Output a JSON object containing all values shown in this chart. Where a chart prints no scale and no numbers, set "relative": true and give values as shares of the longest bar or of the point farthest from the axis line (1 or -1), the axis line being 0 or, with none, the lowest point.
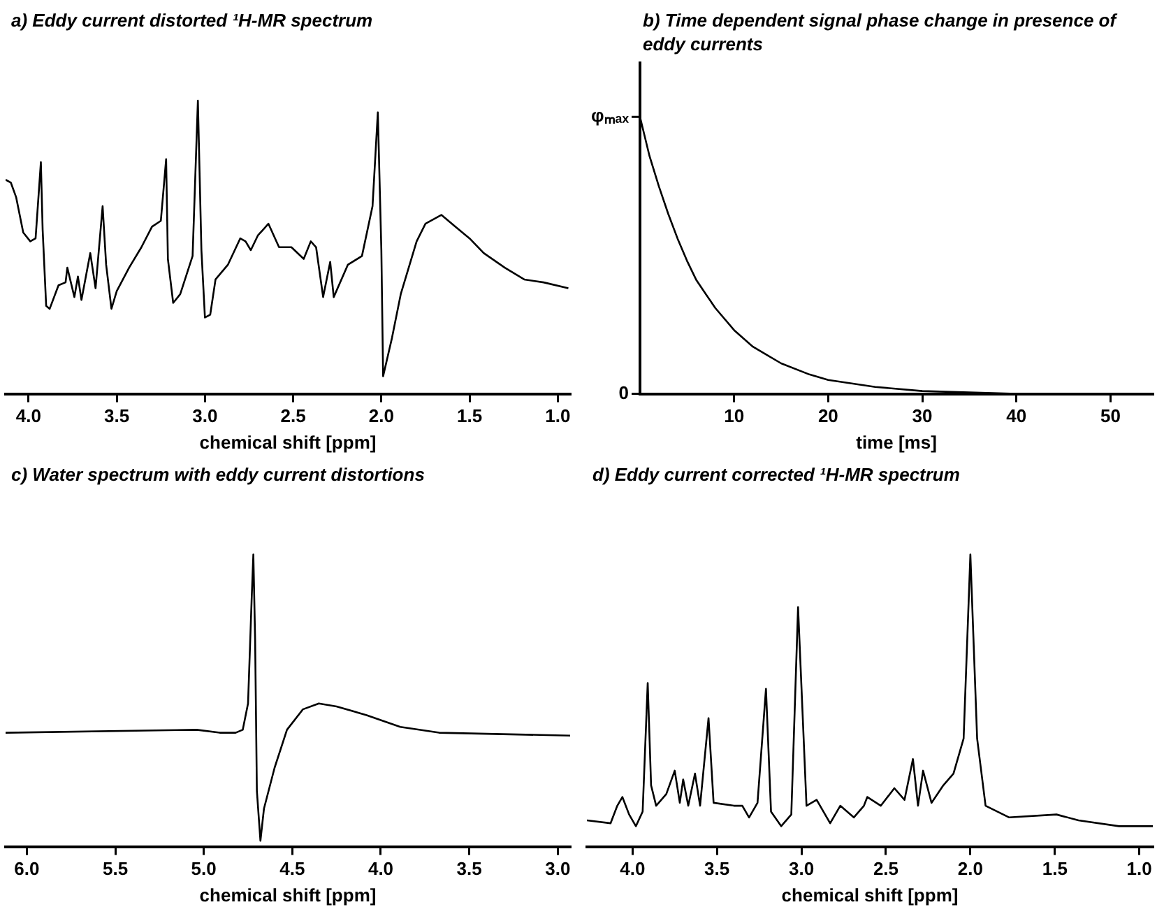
{
  "chart_data": [
    {
      "type": "line",
      "title": "a) Eddy current distorted ¹H-MR spectrum",
      "xlabel": "chemical shift [ppm]",
      "relative": true,
      "tick_labels": "x",
      "marker": "none",
      "color": "#000000",
      "xlim": [
        4.13,
        0.93
      ],
      "xticks": [
        {
          "value": 4,
          "label": "4.0"
        },
        3.5,
        {
          "value": 3,
          "label": "3.0"
        },
        2.5,
        {
          "value": 2,
          "label": "2.0"
        },
        1.5,
        {
          "value": 1,
          "label": "1.0"
        }
      ],
      "x": [
        4.13,
        4.1,
        4.07,
        4.03,
        3.99,
        3.96,
        3.93,
        3.92,
        3.9,
        3.88,
        3.83,
        3.79,
        3.78,
        3.74,
        3.72,
        3.7,
        3.65,
        3.62,
        3.58,
        3.56,
        3.53,
        3.5,
        3.43,
        3.36,
        3.3,
        3.25,
        3.22,
        3.21,
        3.18,
        3.14,
        3.07,
        3.04,
        3.02,
        3.0,
        2.97,
        2.94,
        2.87,
        2.8,
        2.77,
        2.74,
        2.7,
        2.67,
        2.64,
        2.58,
        2.51,
        2.44,
        2.4,
        2.37,
        2.33,
        2.29,
        2.27,
        2.19,
        2.11,
        2.05,
        2.02,
        2.0,
        1.99,
        1.94,
        1.89,
        1.8,
        1.75,
        1.66,
        1.58,
        1.5,
        1.42,
        1.3,
        1.19,
        1.08,
        0.94
      ],
      "values": [
        0.73,
        0.72,
        0.67,
        0.55,
        0.52,
        0.53,
        0.79,
        0.56,
        0.3,
        0.29,
        0.37,
        0.38,
        0.43,
        0.33,
        0.4,
        0.32,
        0.48,
        0.36,
        0.64,
        0.44,
        0.29,
        0.35,
        0.43,
        0.5,
        0.57,
        0.59,
        0.8,
        0.46,
        0.31,
        0.34,
        0.47,
        1.0,
        0.49,
        0.26,
        0.27,
        0.39,
        0.44,
        0.53,
        0.52,
        0.49,
        0.54,
        0.56,
        0.58,
        0.5,
        0.5,
        0.46,
        0.52,
        0.5,
        0.33,
        0.45,
        0.33,
        0.44,
        0.47,
        0.64,
        0.96,
        0.49,
        0.06,
        0.19,
        0.34,
        0.52,
        0.58,
        0.61,
        0.57,
        0.53,
        0.48,
        0.43,
        0.39,
        0.38,
        0.36
      ]
    },
    {
      "type": "line",
      "title": "b) Time dependent signal phase change in presence of eddy currents",
      "xlabel": "time [ms]",
      "relative": true,
      "annotations": [
        "φₘₐₓ",
        "0"
      ],
      "marker": "none",
      "color": "#000000",
      "xlim": [
        0,
        54.5
      ],
      "xticks": [
        10,
        20,
        30,
        40,
        50
      ],
      "x": [
        0,
        1,
        2,
        3,
        4,
        5,
        6,
        7,
        8,
        10,
        12,
        15,
        18,
        20,
        25,
        30,
        35,
        40,
        54.5
      ],
      "values": [
        1,
        0.86,
        0.75,
        0.65,
        0.56,
        0.48,
        0.41,
        0.36,
        0.31,
        0.23,
        0.17,
        0.11,
        0.07,
        0.05,
        0.025,
        0.01,
        0.005,
        0,
        0
      ]
    },
    {
      "type": "line",
      "title": "c) Water spectrum with eddy current distortions",
      "xlabel": "chemical shift [ppm]",
      "relative": true,
      "tick_labels": "x",
      "marker": "none",
      "color": "#000000",
      "xlim": [
        6.12,
        2.93
      ],
      "xticks": [
        {
          "value": 6,
          "label": "6.0"
        },
        5.5,
        {
          "value": 5,
          "label": "5.0"
        },
        4.5,
        {
          "value": 4,
          "label": "4.0"
        },
        3.5,
        {
          "value": 3,
          "label": "3.0"
        }
      ],
      "x": [
        6.12,
        5.04,
        4.91,
        4.82,
        4.78,
        4.75,
        4.73,
        4.72,
        4.71,
        4.7,
        4.68,
        4.66,
        4.6,
        4.53,
        4.44,
        4.35,
        4.25,
        4.08,
        3.89,
        3.67,
        2.93
      ],
      "values": [
        0.39,
        0.4,
        0.39,
        0.39,
        0.4,
        0.49,
        0.84,
        1.0,
        0.71,
        0.19,
        0.02,
        0.13,
        0.27,
        0.4,
        0.47,
        0.49,
        0.48,
        0.45,
        0.41,
        0.39,
        0.38
      ]
    },
    {
      "type": "line",
      "title": "d) Eddy current corrected ¹H-MR spectrum",
      "xlabel": "chemical shift [ppm]",
      "relative": true,
      "tick_labels": "x",
      "marker": "none",
      "color": "#000000",
      "xlim": [
        4.27,
        0.92
      ],
      "xticks": [
        {
          "value": 4,
          "label": "4.0"
        },
        3.5,
        {
          "value": 3,
          "label": "3.0"
        },
        2.5,
        {
          "value": 2,
          "label": "2.0"
        },
        1.5,
        {
          "value": 1,
          "label": "1.0"
        }
      ],
      "x": [
        4.27,
        4.13,
        4.09,
        4.06,
        4.02,
        3.98,
        3.94,
        3.91,
        3.89,
        3.86,
        3.8,
        3.75,
        3.72,
        3.7,
        3.67,
        3.63,
        3.6,
        3.55,
        3.52,
        3.4,
        3.35,
        3.31,
        3.26,
        3.21,
        3.18,
        3.12,
        3.06,
        3.02,
        2.97,
        2.91,
        2.83,
        2.77,
        2.69,
        2.63,
        2.61,
        2.53,
        2.45,
        2.39,
        2.34,
        2.31,
        2.28,
        2.23,
        2.16,
        2.1,
        2.04,
        2.0,
        1.96,
        1.91,
        1.77,
        1.49,
        1.36,
        1.12,
        0.92
      ],
      "values": [
        0.09,
        0.08,
        0.14,
        0.17,
        0.11,
        0.07,
        0.12,
        0.56,
        0.21,
        0.14,
        0.18,
        0.26,
        0.15,
        0.23,
        0.14,
        0.25,
        0.14,
        0.44,
        0.15,
        0.14,
        0.14,
        0.1,
        0.15,
        0.54,
        0.12,
        0.07,
        0.11,
        0.82,
        0.14,
        0.16,
        0.08,
        0.14,
        0.1,
        0.14,
        0.17,
        0.14,
        0.2,
        0.16,
        0.3,
        0.14,
        0.26,
        0.15,
        0.21,
        0.25,
        0.37,
        1.0,
        0.37,
        0.14,
        0.1,
        0.11,
        0.09,
        0.07,
        0.07
      ]
    }
  ]
}
